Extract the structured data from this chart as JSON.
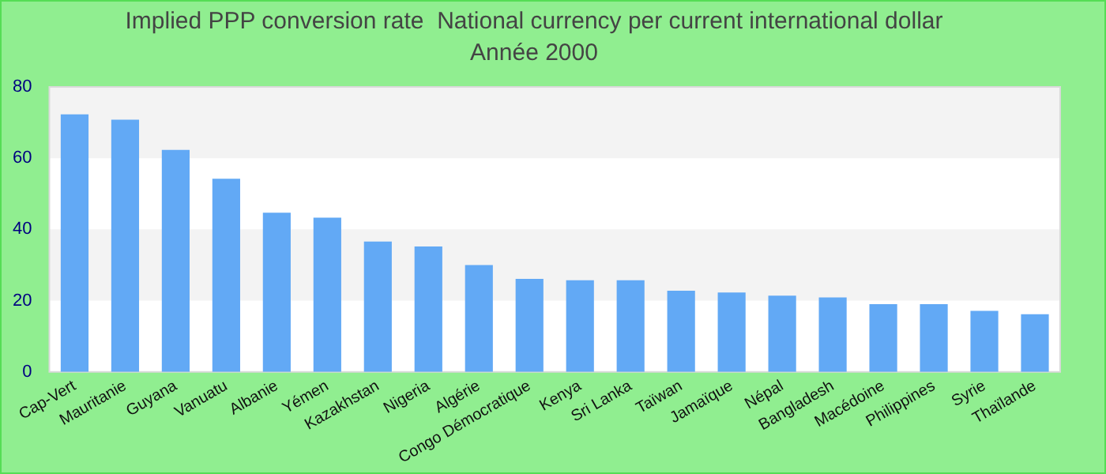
{
  "chart_data": {
    "type": "bar",
    "title": "Implied PPP conversion rate  National currency per current international dollar",
    "subtitle": "Année 2000",
    "categories": [
      "Cap-Vert",
      "Mauritanie",
      "Guyana",
      "Vanuatu",
      "Albanie",
      "Yémen",
      "Kazakhstan",
      "Nigeria",
      "Algérie",
      "Congo Démocratique",
      "Kenya",
      "Sri Lanka",
      "Taïwan",
      "Jamaïque",
      "Népal",
      "Bangladesh",
      "Macédoine",
      "Philippines",
      "Syrie",
      "Thaïlande"
    ],
    "values": [
      72.3,
      70.8,
      62.3,
      54.2,
      44.7,
      43.3,
      36.6,
      35.2,
      30.0,
      26.1,
      25.7,
      25.7,
      22.8,
      22.3,
      21.4,
      20.9,
      19.0,
      19.0,
      17.1,
      16.2
    ],
    "color": "#62a9f5",
    "ylim": [
      0,
      80
    ],
    "yticks": [
      0,
      20,
      40,
      60,
      80
    ],
    "bands": [
      {
        "axis": "y",
        "from": 20,
        "to": 40,
        "color": "#f3f3f3"
      },
      {
        "axis": "y",
        "from": 60,
        "to": 80,
        "color": "#f3f3f3"
      }
    ],
    "legend": false
  }
}
